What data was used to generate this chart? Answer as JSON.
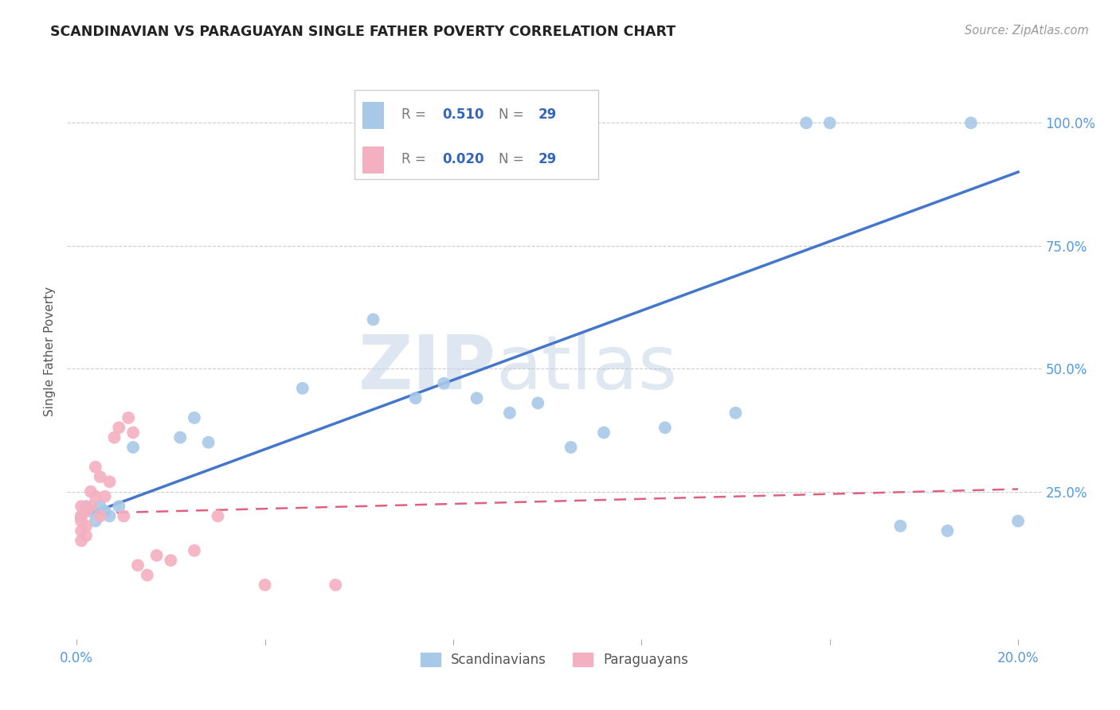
{
  "title": "SCANDINAVIAN VS PARAGUAYAN SINGLE FATHER POVERTY CORRELATION CHART",
  "source": "Source: ZipAtlas.com",
  "ylabel": "Single Father Poverty",
  "legend_label1": "Scandinavians",
  "legend_label2": "Paraguayans",
  "R1": 0.51,
  "R2": 0.02,
  "N1": 29,
  "N2": 29,
  "xlim": [
    -0.002,
    0.205
  ],
  "ylim": [
    -0.05,
    1.12
  ],
  "xticks": [
    0.0,
    0.04,
    0.08,
    0.12,
    0.16,
    0.2
  ],
  "xtick_labels": [
    "0.0%",
    "",
    "",
    "",
    "",
    "20.0%"
  ],
  "ytick_positions": [
    0.25,
    0.5,
    0.75,
    1.0
  ],
  "ytick_labels": [
    "25.0%",
    "50.0%",
    "75.0%",
    "100.0%"
  ],
  "grid_color": "#cccccc",
  "bg_color": "#ffffff",
  "scatter_blue_color": "#a8c8e8",
  "scatter_pink_color": "#f4b0c0",
  "line_blue_color": "#4477cc",
  "line_pink_color": "#e06080",
  "watermark_zip": "ZIP",
  "watermark_atlas": "atlas",
  "scandinavian_x": [
    0.001,
    0.002,
    0.003,
    0.004,
    0.005,
    0.006,
    0.007,
    0.009,
    0.012,
    0.022,
    0.025,
    0.028,
    0.048,
    0.063,
    0.072,
    0.078,
    0.085,
    0.092,
    0.098,
    0.105,
    0.112,
    0.125,
    0.14,
    0.155,
    0.16,
    0.175,
    0.185,
    0.19,
    0.2
  ],
  "scandinavian_y": [
    0.2,
    0.22,
    0.21,
    0.19,
    0.22,
    0.21,
    0.2,
    0.22,
    0.34,
    0.36,
    0.4,
    0.35,
    0.46,
    0.6,
    0.44,
    0.47,
    0.44,
    0.41,
    0.43,
    0.34,
    0.37,
    0.38,
    0.41,
    1.0,
    1.0,
    0.18,
    0.17,
    1.0,
    0.19
  ],
  "paraguayan_x": [
    0.001,
    0.001,
    0.001,
    0.001,
    0.001,
    0.002,
    0.002,
    0.002,
    0.003,
    0.003,
    0.004,
    0.004,
    0.005,
    0.005,
    0.006,
    0.007,
    0.008,
    0.009,
    0.01,
    0.011,
    0.012,
    0.013,
    0.015,
    0.017,
    0.02,
    0.025,
    0.03,
    0.04,
    0.055
  ],
  "paraguayan_y": [
    0.2,
    0.19,
    0.22,
    0.17,
    0.15,
    0.21,
    0.18,
    0.16,
    0.25,
    0.22,
    0.3,
    0.24,
    0.2,
    0.28,
    0.24,
    0.27,
    0.36,
    0.38,
    0.2,
    0.4,
    0.37,
    0.1,
    0.08,
    0.12,
    0.11,
    0.13,
    0.2,
    0.06,
    0.06
  ],
  "blue_line_x0": 0.0,
  "blue_line_y0": 0.195,
  "blue_line_x1": 0.2,
  "blue_line_y1": 0.9,
  "pink_line_x0": 0.0,
  "pink_line_y0": 0.205,
  "pink_line_x1": 0.2,
  "pink_line_y1": 0.255
}
